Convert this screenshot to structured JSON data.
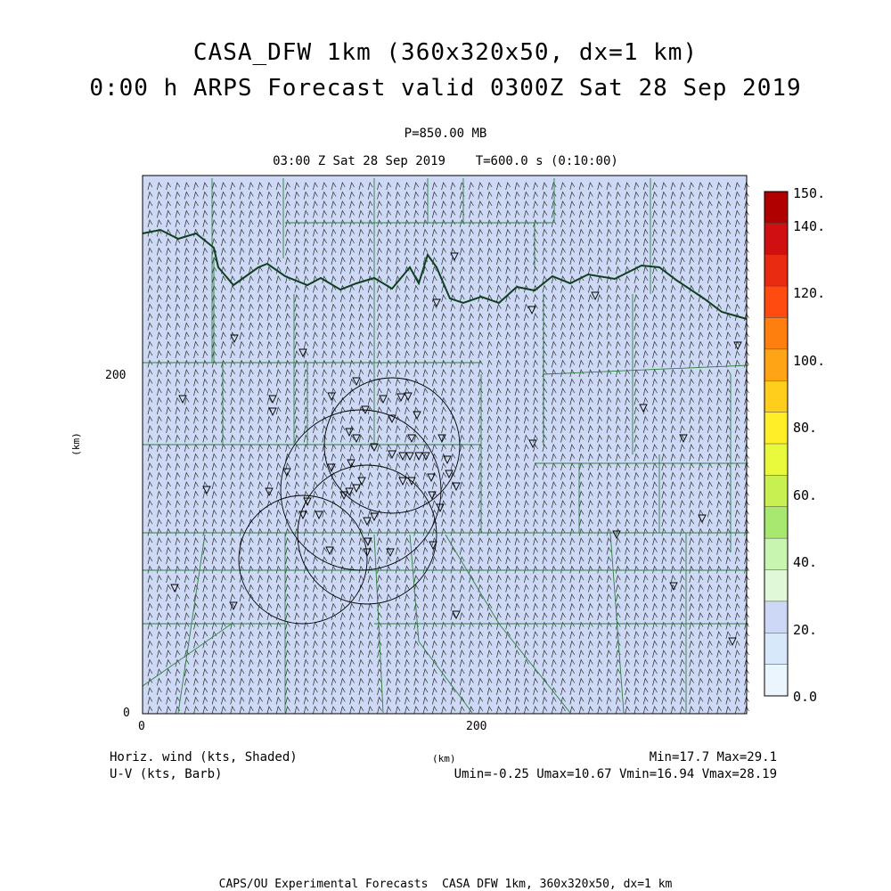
{
  "title_line1": "CASA_DFW 1km (360x320x50, dx=1 km)",
  "title_line2": "0:00 h ARPS Forecast valid 0300Z Sat 28 Sep 2019",
  "subtitle_line1": "P=850.00 MB",
  "subtitle_line2": "03:00 Z Sat 28 Sep 2019    T=600.0 s (0:10:00)",
  "x_axis": {
    "label": "(km)",
    "ticks": [
      "0",
      "200"
    ]
  },
  "y_axis": {
    "label": "(km)",
    "ticks": [
      "0",
      "200"
    ]
  },
  "colorbar": {
    "labels": [
      "150.",
      "140.",
      "120.",
      "100.",
      "80.",
      "60.",
      "40.",
      "20.",
      "0.0"
    ],
    "colors": [
      "#b00000",
      "#d01010",
      "#e82a10",
      "#ff4b10",
      "#ff7f0e",
      "#ffa515",
      "#ffcd1c",
      "#ffee28",
      "#e8f83a",
      "#c8f050",
      "#a8e870",
      "#c8f5b0",
      "#e0f7d8",
      "#ccd8f6",
      "#d6e8fa",
      "#eaf5fd"
    ]
  },
  "field_color": "#cdd9f5",
  "boundary_color": "#2f7f3f",
  "river_color": "#0f3f1f",
  "footer": {
    "left_line1": "Horiz. wind (kts, Shaded)",
    "left_line2": "U-V (kts, Barb)",
    "center": "(km)",
    "right_line1": "Min=17.7 Max=29.1",
    "right_line2": "Umin=-0.25 Umax=10.67 Vmin=16.94 Vmax=28.19"
  },
  "bottom_text": "CAPS/OU Experimental Forecasts  CASA DFW 1km, 360x320x50, dx=1 km"
}
